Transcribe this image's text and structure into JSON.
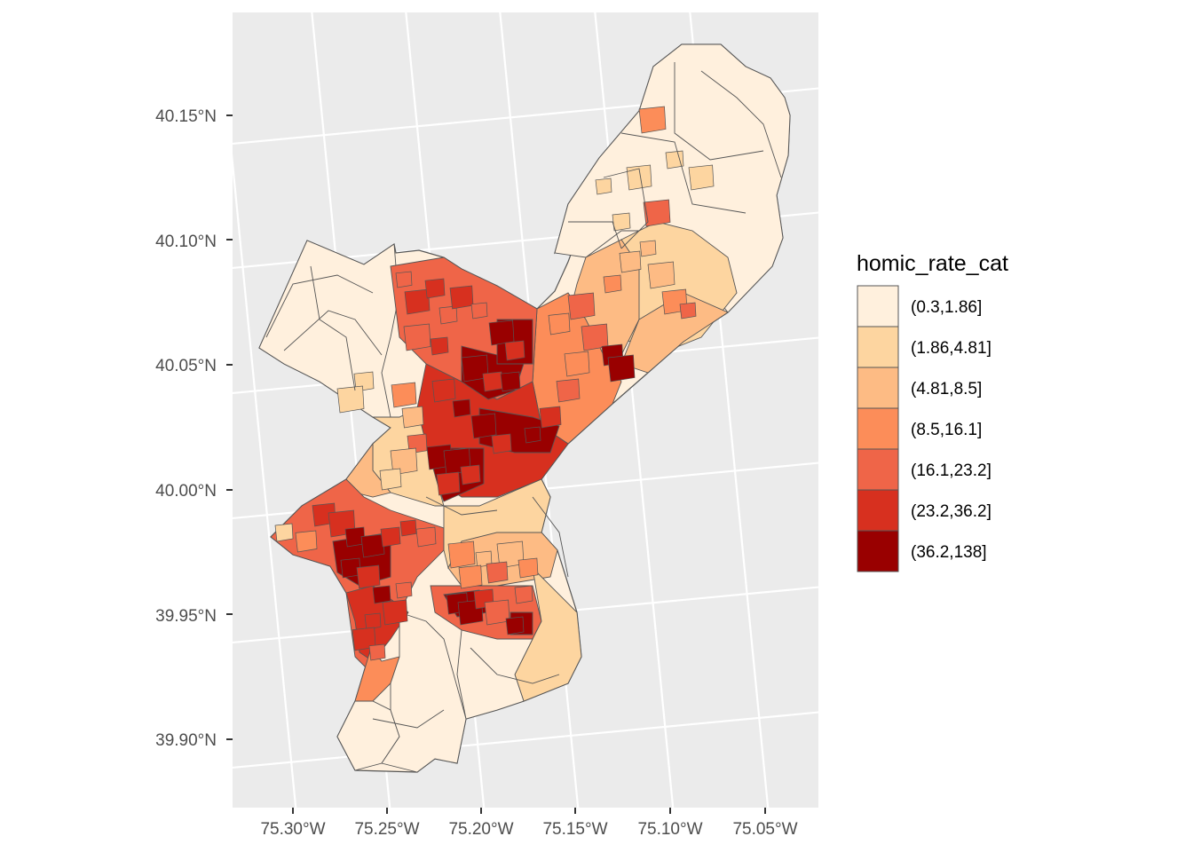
{
  "map": {
    "y_axis": {
      "labels": [
        "40.15°N",
        "40.10°N",
        "40.05°N",
        "40.00°N",
        "39.95°N",
        "39.90°N"
      ]
    },
    "x_axis": {
      "labels": [
        "75.30°W",
        "75.25°W",
        "75.20°W",
        "75.15°W",
        "75.10°W",
        "75.05°W"
      ]
    },
    "panel_background": "#ebebeb",
    "grid_color": "#ffffff",
    "region_outline": "#555555"
  },
  "legend": {
    "title": "homic_rate_cat",
    "items": [
      {
        "label": "(0.3,1.86]",
        "color": "#fff0dd"
      },
      {
        "label": "(1.86,4.81]",
        "color": "#fdd5a0"
      },
      {
        "label": "(4.81,8.5]",
        "color": "#fdbb84"
      },
      {
        "label": "(8.5,16.1]",
        "color": "#fc8d59"
      },
      {
        "label": "(16.1,23.2]",
        "color": "#ef6548"
      },
      {
        "label": "(23.2,36.2]",
        "color": "#d7301f"
      },
      {
        "label": "(36.2,138]",
        "color": "#990000"
      }
    ]
  }
}
